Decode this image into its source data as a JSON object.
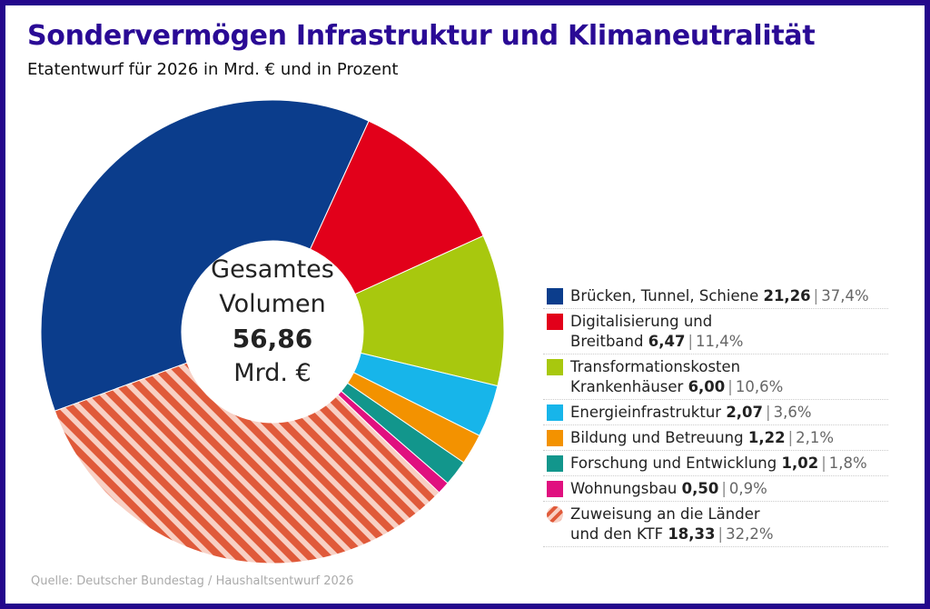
{
  "title": "Sondervermögen Infrastruktur und Klimaneutralität",
  "subtitle": "Etatentwurf für 2026 in Mrd. € und in Prozent",
  "center": {
    "line1": "Gesamtes",
    "line2": "Volumen",
    "value": "56,86",
    "unit": "Mrd. €"
  },
  "source": "Quelle: Deutscher Bundestag / Haushaltsentwurf 2026",
  "chart_data": {
    "type": "pie",
    "variant": "donut",
    "total": 56.86,
    "unit": "Mrd. €",
    "legend_position": "right",
    "slices": [
      {
        "label": "Brücken, Tunnel, Schiene",
        "value": 21.26,
        "value_text": "21,26",
        "percent": 37.4,
        "percent_text": "37,4%",
        "color": "#0b3d8c"
      },
      {
        "label": "Digitalisierung und Breitband",
        "value": 6.47,
        "value_text": "6,47",
        "percent": 11.4,
        "percent_text": "11,4%",
        "color": "#e2001a"
      },
      {
        "label": "Transformationskosten Krankenhäuser",
        "value": 6.0,
        "value_text": "6,00",
        "percent": 10.6,
        "percent_text": "10,6%",
        "color": "#a8c80e"
      },
      {
        "label": "Energieinfrastruktur",
        "value": 2.07,
        "value_text": "2,07",
        "percent": 3.6,
        "percent_text": "3,6%",
        "color": "#17b5ea"
      },
      {
        "label": "Bildung und Betreuung",
        "value": 1.22,
        "value_text": "1,22",
        "percent": 2.1,
        "percent_text": "2,1%",
        "color": "#f39200"
      },
      {
        "label": "Forschung und Entwicklung",
        "value": 1.02,
        "value_text": "1,02",
        "percent": 1.8,
        "percent_text": "1,8%",
        "color": "#12968c"
      },
      {
        "label": "Wohnungsbau",
        "value": 0.5,
        "value_text": "0,50",
        "percent": 0.9,
        "percent_text": "0,9%",
        "color": "#e0107f"
      },
      {
        "label": "Zuweisung an die Länder und den KTF",
        "value": 18.33,
        "value_text": "18,33",
        "percent": 32.2,
        "percent_text": "32,2%",
        "color": "#e05a3a",
        "pattern": "hatched"
      }
    ]
  }
}
